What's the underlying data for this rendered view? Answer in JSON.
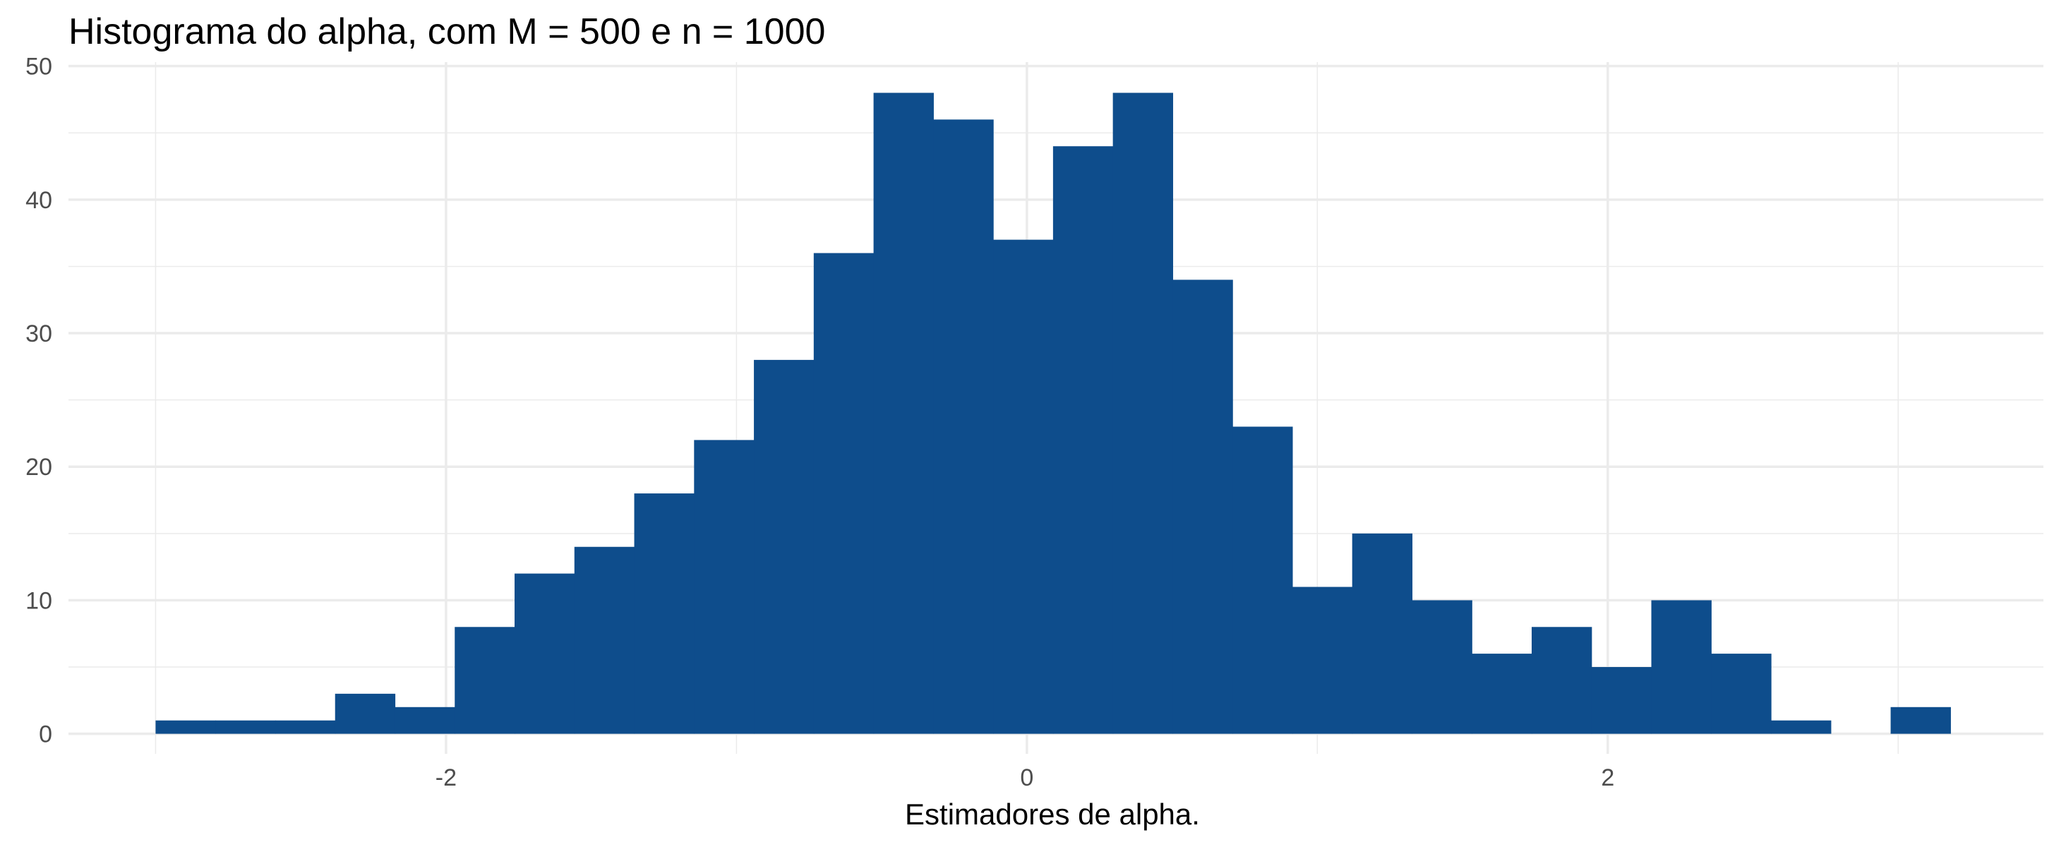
{
  "chart_data": {
    "type": "bar",
    "title": "Histograma do alpha, com M = 500 e n = 1000",
    "xlabel": "Estimadores de alpha.",
    "ylabel": "",
    "bin_width": 0.206,
    "bins": [
      {
        "x0": -3.0,
        "count": 1
      },
      {
        "x0": -2.794,
        "count": 1
      },
      {
        "x0": -2.588,
        "count": 1
      },
      {
        "x0": -2.382,
        "count": 3
      },
      {
        "x0": -2.176,
        "count": 2
      },
      {
        "x0": -1.97,
        "count": 8
      },
      {
        "x0": -1.764,
        "count": 12
      },
      {
        "x0": -1.558,
        "count": 14
      },
      {
        "x0": -1.352,
        "count": 18
      },
      {
        "x0": -1.146,
        "count": 22
      },
      {
        "x0": -0.94,
        "count": 28
      },
      {
        "x0": -0.734,
        "count": 36
      },
      {
        "x0": -0.528,
        "count": 48
      },
      {
        "x0": -0.322,
        "count": 46
      },
      {
        "x0": -0.116,
        "count": 37
      },
      {
        "x0": 0.09,
        "count": 44
      },
      {
        "x0": 0.296,
        "count": 48
      },
      {
        "x0": 0.502,
        "count": 34
      },
      {
        "x0": 0.708,
        "count": 23
      },
      {
        "x0": 0.914,
        "count": 11
      },
      {
        "x0": 1.12,
        "count": 15
      },
      {
        "x0": 1.326,
        "count": 10
      },
      {
        "x0": 1.532,
        "count": 6
      },
      {
        "x0": 1.738,
        "count": 8
      },
      {
        "x0": 1.944,
        "count": 5
      },
      {
        "x0": 2.15,
        "count": 10
      },
      {
        "x0": 2.356,
        "count": 6
      },
      {
        "x0": 2.562,
        "count": 1
      },
      {
        "x0": 2.768,
        "count": 0
      },
      {
        "x0": 2.974,
        "count": 2
      }
    ],
    "xlim": [
      -3.3,
      3.5
    ],
    "ylim": [
      -1.5,
      50.3
    ],
    "x_ticks": [
      -2,
      0,
      2
    ],
    "x_tick_labels": [
      "-2",
      "0",
      "2"
    ],
    "y_ticks": [
      0,
      10,
      20,
      30,
      40,
      50
    ],
    "y_tick_labels": [
      "0",
      "10",
      "20",
      "30",
      "40",
      "50"
    ],
    "grid": true,
    "legend": "none",
    "bar_color": "#0e4d8c",
    "grid_color": "#ebebeb"
  }
}
